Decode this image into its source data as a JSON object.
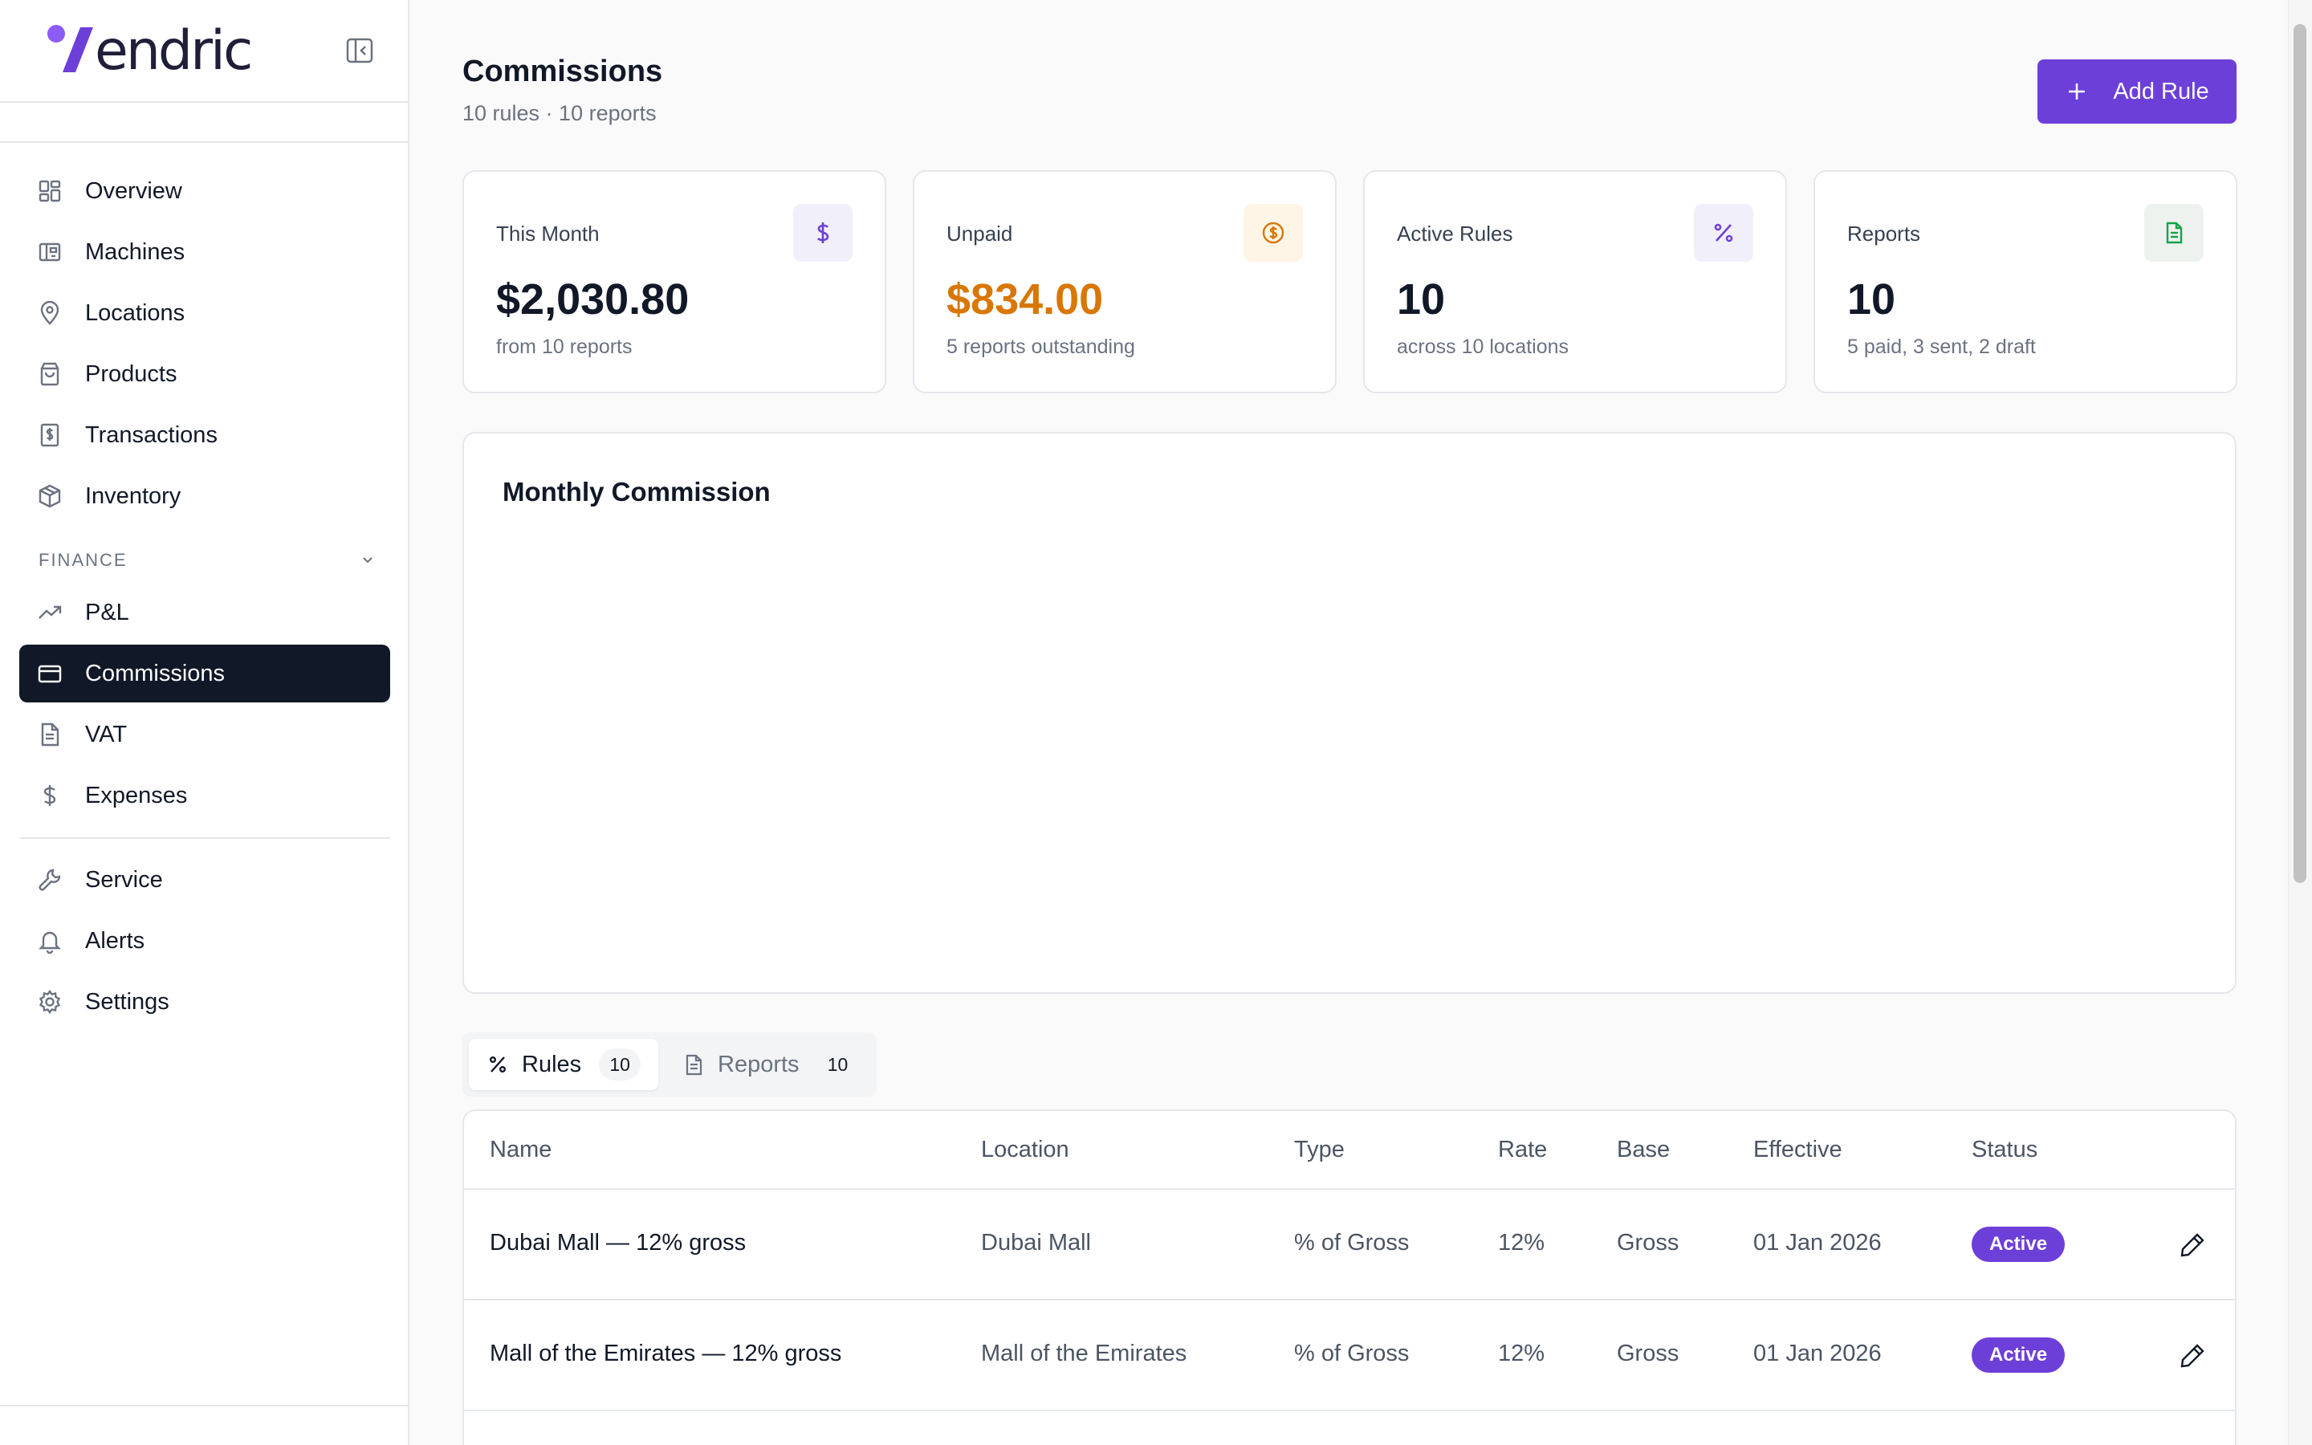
{
  "brand": {
    "name": "endric"
  },
  "sidebar": {
    "items": [
      {
        "label": "Overview",
        "icon": "overview-icon"
      },
      {
        "label": "Machines",
        "icon": "machines-icon"
      },
      {
        "label": "Locations",
        "icon": "map-pin-icon"
      },
      {
        "label": "Products",
        "icon": "shopping-bag-icon"
      },
      {
        "label": "Transactions",
        "icon": "receipt-icon"
      },
      {
        "label": "Inventory",
        "icon": "package-icon"
      }
    ],
    "finance_section": "FINANCE",
    "finance_items": [
      {
        "label": "P&L",
        "icon": "trending-up-icon"
      },
      {
        "label": "Commissions",
        "icon": "credit-card-icon",
        "active": true
      },
      {
        "label": "VAT",
        "icon": "document-icon"
      },
      {
        "label": "Expenses",
        "icon": "dollar-icon"
      }
    ],
    "bottom_items": [
      {
        "label": "Service",
        "icon": "wrench-icon"
      },
      {
        "label": "Alerts",
        "icon": "bell-icon"
      },
      {
        "label": "Settings",
        "icon": "gear-icon"
      }
    ]
  },
  "header": {
    "title": "Commissions",
    "subtitle": "10 rules · 10 reports",
    "add_button": "Add Rule"
  },
  "stats": [
    {
      "label": "This Month",
      "value": "$2,030.80",
      "note": "from 10 reports",
      "icon": "dollar-icon",
      "value_color": "#111827"
    },
    {
      "label": "Unpaid",
      "value": "$834.00",
      "note": "5 reports outstanding",
      "icon": "coin-icon",
      "value_color": "#d97706"
    },
    {
      "label": "Active Rules",
      "value": "10",
      "note": "across 10 locations",
      "icon": "percent-icon",
      "value_color": "#111827"
    },
    {
      "label": "Reports",
      "value": "10",
      "note": "5 paid, 3 sent, 2 draft",
      "icon": "file-icon",
      "value_color": "#111827"
    }
  ],
  "chart": {
    "title": "Monthly Commission"
  },
  "tabs": [
    {
      "label": "Rules",
      "count": "10",
      "active": true
    },
    {
      "label": "Reports",
      "count": "10",
      "active": false
    }
  ],
  "table": {
    "columns": [
      "Name",
      "Location",
      "Type",
      "Rate",
      "Base",
      "Effective",
      "Status"
    ],
    "rows": [
      {
        "name": "Dubai Mall — 12% gross",
        "location": "Dubai Mall",
        "type": "% of Gross",
        "rate": "12%",
        "base": "Gross",
        "effective": "01 Jan 2026",
        "status": "Active"
      },
      {
        "name": "Mall of the Emirates — 12% gross",
        "location": "Mall of the Emirates",
        "type": "% of Gross",
        "rate": "12%",
        "base": "Gross",
        "effective": "01 Jan 2026",
        "status": "Active"
      }
    ]
  },
  "colors": {
    "accent": "#6d3fd9",
    "sidebar_active": "#111827",
    "unpaid": "#d97706",
    "reports_green": "#16a34a"
  }
}
